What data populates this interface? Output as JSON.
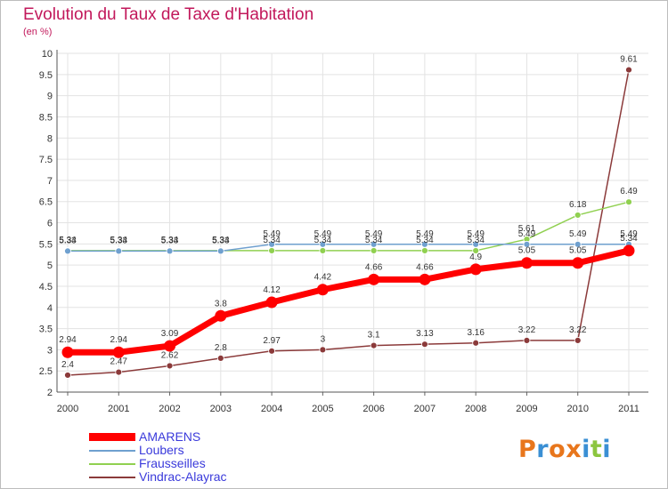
{
  "title": "Evolution du Taux de Taxe d'Habitation",
  "subtitle": "(en %)",
  "logo": {
    "text": "Proxiti",
    "colors": [
      "#e8761c",
      "#3a8fd4",
      "#e8761c",
      "#e8761c",
      "#3a8fd4",
      "#8cc63f",
      "#3a8fd4"
    ]
  },
  "chart_data": {
    "type": "line",
    "title": "Evolution du Taux de Taxe d'Habitation",
    "subtitle": "(en %)",
    "xlabel": "",
    "ylabel": "",
    "x": [
      "2000",
      "2001",
      "2002",
      "2003",
      "2004",
      "2005",
      "2006",
      "2007",
      "2008",
      "2009",
      "2010",
      "2011"
    ],
    "ylim": [
      2,
      10
    ],
    "yticks": [
      "2",
      "2.5",
      "3",
      "3.5",
      "4",
      "4.5",
      "5",
      "5.5",
      "6",
      "6.5",
      "7",
      "7.5",
      "8",
      "8.5",
      "9",
      "9.5",
      "10"
    ],
    "grid": true,
    "legend_position": "bottom-left",
    "series": [
      {
        "name": "AMARENS",
        "color": "#ff0000",
        "values": [
          2.94,
          2.94,
          3.09,
          3.8,
          4.12,
          4.42,
          4.66,
          4.66,
          4.9,
          5.05,
          5.05,
          5.34
        ],
        "labels": [
          "2.94",
          "2.94",
          "3.09",
          "3.8",
          "4.12",
          "4.42",
          "4.66",
          "4.66",
          "4.9",
          "5.05",
          "5.05",
          "5.34"
        ]
      },
      {
        "name": "Loubers",
        "color": "#6fa0cf",
        "values": [
          5.33,
          5.33,
          5.33,
          5.33,
          5.49,
          5.49,
          5.49,
          5.49,
          5.49,
          5.49,
          5.49,
          5.49
        ],
        "labels": [
          "5.33",
          "5.33",
          "5.33",
          "5.33",
          "5.49",
          "5.49",
          "5.49",
          "5.49",
          "5.49",
          "5.49",
          "5.49",
          "5.49"
        ]
      },
      {
        "name": "Frausseilles",
        "color": "#90d050",
        "values": [
          5.34,
          5.34,
          5.34,
          5.34,
          5.34,
          5.34,
          5.34,
          5.34,
          5.34,
          5.61,
          6.18,
          6.49
        ],
        "labels": [
          "5.34",
          "5.34",
          "5.34",
          "5.34",
          "5.34",
          "5.34",
          "5.34",
          "5.34",
          "5.34",
          "5.61",
          "6.18",
          "6.49"
        ]
      },
      {
        "name": "Vindrac-Alayrac",
        "color": "#8b3a3a",
        "values": [
          2.4,
          2.47,
          2.62,
          2.8,
          2.97,
          3.0,
          3.1,
          3.13,
          3.16,
          3.22,
          3.22,
          9.61
        ],
        "labels": [
          "2.4",
          "2.47",
          "2.62",
          "2.8",
          "2.97",
          "3",
          "3.1",
          "3.13",
          "3.16",
          "3.22",
          "3.22",
          "9.61"
        ]
      }
    ]
  }
}
